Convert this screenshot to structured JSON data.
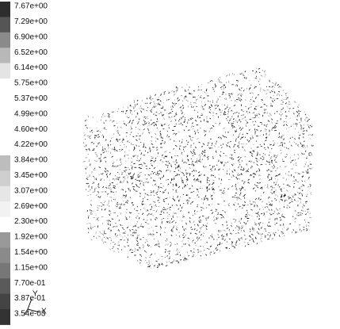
{
  "colorbar": {
    "labels": [
      "7.67e+00",
      "7.29e+00",
      "6.90e+00",
      "6.52e+00",
      "6.14e+00",
      "5.75e+00",
      "5.37e+00",
      "4.99e+00",
      "4.60e+00",
      "4.22e+00",
      "3.84e+00",
      "3.45e+00",
      "3.07e+00",
      "2.69e+00",
      "2.30e+00",
      "1.92e+00",
      "1.54e+00",
      "1.15e+00",
      "7.70e-01",
      "3.87e-01",
      "3.54e-03"
    ]
  },
  "axes": {
    "y": "Y",
    "x": "X"
  }
}
